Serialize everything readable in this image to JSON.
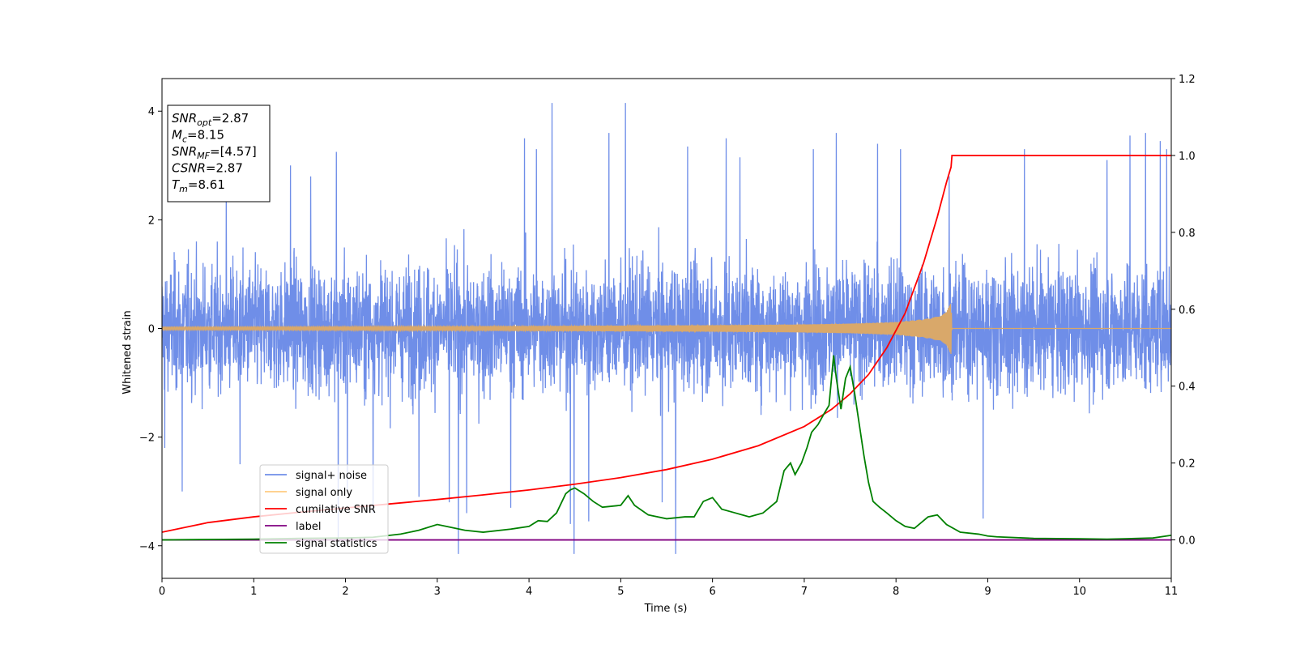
{
  "chart_data": {
    "type": "line",
    "xlabel": "Time (s)",
    "ylabel": "Whitened strain",
    "xlim": [
      0,
      11
    ],
    "ylim": [
      -4.6,
      4.6
    ],
    "y2lim": [
      -0.1,
      1.2
    ],
    "x_ticks": [
      "0",
      "1",
      "2",
      "3",
      "4",
      "5",
      "6",
      "7",
      "8",
      "9",
      "10",
      "11"
    ],
    "y_ticks": [
      "4",
      "2",
      "0",
      "−2",
      "−4"
    ],
    "y2_ticks": [
      "1.2",
      "1.0",
      "0.8",
      "0.6",
      "0.4",
      "0.2",
      "0.0"
    ],
    "grid": false,
    "legend_position": "lower-left",
    "annotation": {
      "lines": [
        {
          "var": "SNR",
          "sub": "opt",
          "text": "=2.87"
        },
        {
          "var": "M",
          "sub": "c",
          "text": "=8.15"
        },
        {
          "var": "SNR",
          "sub": "MF",
          "text": "=[4.57]"
        },
        {
          "var": "CSNR",
          "sub": "",
          "text": "=2.87"
        },
        {
          "var": "T",
          "sub": "m",
          "text": "=8.61"
        }
      ]
    },
    "series": [
      {
        "name": "signal+ noise",
        "axis": "left",
        "color": "#6f8ee8",
        "description": "dense whitened noise, roughly within [-2.2, 2.3] with spikes",
        "spikes": [
          [
            0.03,
            -2.2
          ],
          [
            0.22,
            -3.0
          ],
          [
            0.7,
            2.5
          ],
          [
            0.85,
            -2.5
          ],
          [
            1.4,
            3.0
          ],
          [
            1.62,
            2.8
          ],
          [
            1.9,
            3.25
          ],
          [
            1.92,
            -4.05
          ],
          [
            2.02,
            -3.0
          ],
          [
            2.3,
            -3.4
          ],
          [
            2.8,
            -3.1
          ],
          [
            3.13,
            -3.2
          ],
          [
            3.23,
            -4.15
          ],
          [
            3.32,
            -3.4
          ],
          [
            3.8,
            -3.3
          ],
          [
            3.95,
            3.5
          ],
          [
            4.08,
            3.3
          ],
          [
            4.25,
            4.15
          ],
          [
            4.45,
            -3.6
          ],
          [
            4.49,
            -4.15
          ],
          [
            4.65,
            -3.55
          ],
          [
            4.87,
            3.6
          ],
          [
            5.05,
            4.15
          ],
          [
            5.45,
            -3.2
          ],
          [
            5.6,
            -4.15
          ],
          [
            5.73,
            3.35
          ],
          [
            6.15,
            3.5
          ],
          [
            6.3,
            3.15
          ],
          [
            7.1,
            3.3
          ],
          [
            7.35,
            3.6
          ],
          [
            7.8,
            3.4
          ],
          [
            8.05,
            3.3
          ],
          [
            8.58,
            2.8
          ],
          [
            8.95,
            -3.5
          ],
          [
            9.4,
            3.3
          ],
          [
            10.3,
            3.1
          ],
          [
            10.55,
            3.55
          ],
          [
            10.72,
            3.6
          ],
          [
            10.88,
            3.45
          ],
          [
            10.95,
            3.3
          ]
        ]
      },
      {
        "name": "signal only",
        "axis": "left",
        "color": "#d9a86a",
        "envelope": [
          [
            0,
            0.03
          ],
          [
            2,
            0.035
          ],
          [
            4,
            0.045
          ],
          [
            6,
            0.06
          ],
          [
            7,
            0.075
          ],
          [
            7.5,
            0.09
          ],
          [
            8,
            0.12
          ],
          [
            8.3,
            0.17
          ],
          [
            8.45,
            0.22
          ],
          [
            8.55,
            0.3
          ],
          [
            8.6,
            0.5
          ],
          [
            8.61,
            0
          ]
        ]
      },
      {
        "name": "cumilative SNR",
        "axis": "right",
        "color": "#ff0000",
        "x": [
          0,
          0.5,
          1,
          1.5,
          2,
          2.5,
          3,
          3.5,
          4,
          4.5,
          5,
          5.5,
          6,
          6.5,
          7,
          7.3,
          7.5,
          7.7,
          7.9,
          8.1,
          8.3,
          8.45,
          8.55,
          8.6,
          8.61,
          11
        ],
        "y": [
          0.02,
          0.045,
          0.06,
          0.072,
          0.083,
          0.094,
          0.105,
          0.117,
          0.13,
          0.145,
          0.162,
          0.183,
          0.21,
          0.245,
          0.295,
          0.34,
          0.38,
          0.43,
          0.5,
          0.59,
          0.72,
          0.84,
          0.93,
          0.97,
          1.0,
          1.0
        ]
      },
      {
        "name": "label",
        "axis": "right",
        "color": "#800080",
        "x": [
          0,
          11
        ],
        "y": [
          0.0,
          0.0
        ]
      },
      {
        "name": "signal statistics",
        "axis": "right",
        "color": "#008000",
        "x": [
          0,
          0.5,
          1,
          1.5,
          2,
          2.3,
          2.6,
          2.8,
          3.0,
          3.1,
          3.2,
          3.3,
          3.5,
          3.8,
          4.0,
          4.1,
          4.2,
          4.3,
          4.4,
          4.45,
          4.5,
          4.6,
          4.7,
          4.8,
          5.0,
          5.08,
          5.15,
          5.3,
          5.5,
          5.7,
          5.8,
          5.9,
          6.0,
          6.1,
          6.25,
          6.4,
          6.55,
          6.7,
          6.78,
          6.85,
          6.9,
          6.97,
          7.03,
          7.08,
          7.15,
          7.22,
          7.27,
          7.32,
          7.35,
          7.4,
          7.45,
          7.5,
          7.55,
          7.6,
          7.65,
          7.7,
          7.75,
          7.82,
          7.9,
          8.0,
          8.1,
          8.2,
          8.3,
          8.35,
          8.45,
          8.55,
          8.7,
          8.9,
          9.0,
          9.1,
          9.5,
          10.0,
          10.3,
          10.5,
          10.8,
          11.0
        ],
        "y": [
          0.0,
          0.001,
          0.002,
          0.004,
          0.005,
          0.007,
          0.015,
          0.025,
          0.04,
          0.035,
          0.03,
          0.025,
          0.02,
          0.028,
          0.035,
          0.05,
          0.048,
          0.07,
          0.12,
          0.13,
          0.135,
          0.12,
          0.1,
          0.085,
          0.09,
          0.115,
          0.09,
          0.065,
          0.055,
          0.06,
          0.06,
          0.1,
          0.11,
          0.08,
          0.07,
          0.06,
          0.07,
          0.1,
          0.18,
          0.2,
          0.17,
          0.2,
          0.24,
          0.28,
          0.3,
          0.33,
          0.35,
          0.48,
          0.42,
          0.34,
          0.42,
          0.45,
          0.38,
          0.3,
          0.22,
          0.15,
          0.1,
          0.085,
          0.07,
          0.05,
          0.035,
          0.03,
          0.05,
          0.06,
          0.065,
          0.04,
          0.02,
          0.015,
          0.01,
          0.008,
          0.004,
          0.003,
          0.002,
          0.003,
          0.005,
          0.012
        ]
      }
    ]
  }
}
